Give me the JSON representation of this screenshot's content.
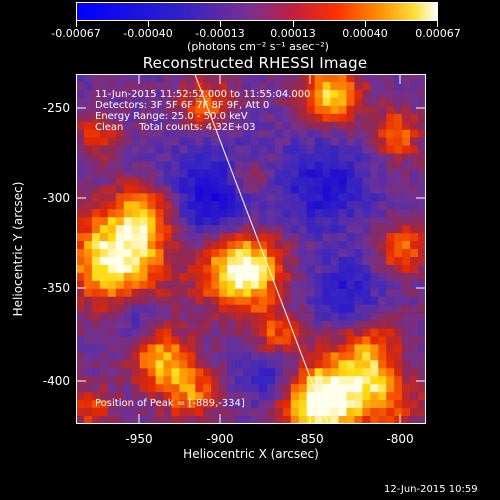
{
  "colorbar": {
    "tick_labels": [
      "-0.00067",
      "-0.00040",
      "-0.00013",
      "0.00013",
      "0.00040",
      "0.00067"
    ],
    "unit_label": "(photons cm⁻² s⁻¹ asec⁻²)"
  },
  "title": "Reconstructed RHESSI Image",
  "annotations": {
    "line1": "11-Jun-2015 11:52:52.000 to 11:55:04.000",
    "line2": "Detectors: 3F 5F 6F 7F 8F 9F, Att 0",
    "line3": "Energy Range: 25.0 - 50.0 keV",
    "line4": "Clean     Total counts: 4.32E+03",
    "peak": "Position of Peak = [-889,-334]"
  },
  "axes": {
    "xlabel": "Heliocentric X (arcsec)",
    "ylabel": "Heliocentric Y (arcsec)",
    "x_tick_labels": [
      "-950",
      "-900",
      "-850",
      "-800"
    ],
    "y_tick_labels": [
      "-250",
      "-300",
      "-350",
      "-400"
    ],
    "x_range": [
      -982,
      -788
    ],
    "y_range": [
      -428,
      -234
    ]
  },
  "timestamp": "12-Jun-2015 10:59",
  "colors": {
    "background": "#000000",
    "text": "#ffffff"
  }
}
